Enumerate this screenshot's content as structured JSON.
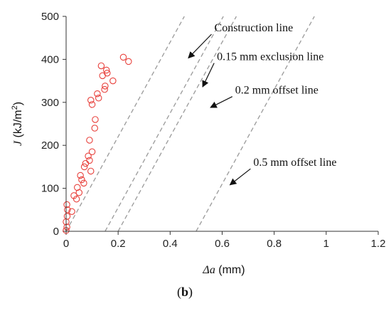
{
  "chart_data": {
    "type": "scatter",
    "panel_label": {
      "open": "(",
      "letter": "b",
      "close": ")"
    },
    "xlabel": {
      "symbol": "Δa",
      "unit": " (mm)"
    },
    "ylabel": {
      "symbol": "J",
      "unit_prefix": " (kJ/m",
      "unit_sup": "2",
      "unit_suffix": ")"
    },
    "xlim": [
      0,
      1.2
    ],
    "ylim": [
      0,
      500
    ],
    "x_ticks": [
      0,
      0.2,
      0.4,
      0.6,
      0.8,
      1,
      1.2
    ],
    "x_tick_labels": [
      "0",
      "0.2",
      "0.4",
      "0.6",
      "0.8",
      "1",
      "1.2"
    ],
    "y_ticks": [
      0,
      100,
      200,
      300,
      400,
      500
    ],
    "y_tick_labels": [
      "0",
      "100",
      "200",
      "300",
      "400",
      "500"
    ],
    "grid": false,
    "marker_color": "#e8413c",
    "line_color": "#9a9a9a",
    "arrow_color": "#111111",
    "points": [
      [
        0.0,
        2
      ],
      [
        0.003,
        10
      ],
      [
        0.0,
        22
      ],
      [
        0.004,
        35
      ],
      [
        0.005,
        50
      ],
      [
        0.003,
        62
      ],
      [
        0.022,
        46
      ],
      [
        0.03,
        83
      ],
      [
        0.04,
        75
      ],
      [
        0.043,
        102
      ],
      [
        0.05,
        90
      ],
      [
        0.055,
        130
      ],
      [
        0.06,
        120
      ],
      [
        0.068,
        112
      ],
      [
        0.07,
        150
      ],
      [
        0.075,
        158
      ],
      [
        0.085,
        175
      ],
      [
        0.09,
        165
      ],
      [
        0.095,
        140
      ],
      [
        0.1,
        185
      ],
      [
        0.09,
        212
      ],
      [
        0.11,
        240
      ],
      [
        0.112,
        260
      ],
      [
        0.1,
        295
      ],
      [
        0.095,
        305
      ],
      [
        0.12,
        320
      ],
      [
        0.125,
        310
      ],
      [
        0.148,
        330
      ],
      [
        0.15,
        338
      ],
      [
        0.14,
        362
      ],
      [
        0.155,
        375
      ],
      [
        0.158,
        368
      ],
      [
        0.135,
        385
      ],
      [
        0.18,
        350
      ],
      [
        0.22,
        405
      ],
      [
        0.24,
        395
      ]
    ],
    "lines": [
      {
        "name": "Construction line",
        "x_start": 0.0,
        "slope": 1100,
        "label_x": 0.57,
        "label_y": 465,
        "arrow_tip": [
          0.47,
          403
        ]
      },
      {
        "name": "0.15 mm exclusion line",
        "x_start": 0.15,
        "slope": 1100,
        "label_x": 0.58,
        "label_y": 398,
        "arrow_tip": [
          0.525,
          336
        ]
      },
      {
        "name": "0.2 mm offset line",
        "x_start": 0.2,
        "slope": 1100,
        "label_x": 0.65,
        "label_y": 320,
        "arrow_tip": [
          0.555,
          288
        ]
      },
      {
        "name": "0.5 mm offset line",
        "x_start": 0.5,
        "slope": 1100,
        "label_x": 0.72,
        "label_y": 152,
        "arrow_tip": [
          0.63,
          108
        ]
      }
    ]
  }
}
